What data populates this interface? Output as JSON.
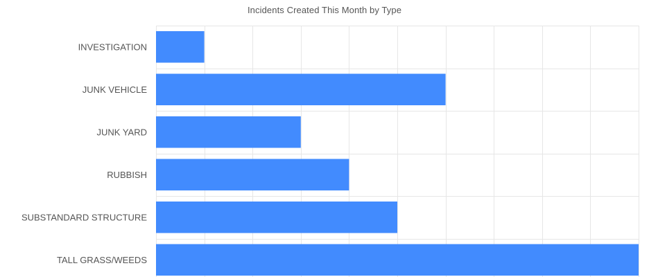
{
  "chart_data": {
    "type": "bar",
    "orientation": "horizontal",
    "title": "Incidents Created This Month by Type",
    "categories": [
      "INVESTIGATION",
      "JUNK VEHICLE",
      "JUNK YARD",
      "RUBBISH",
      "SUBSTANDARD STRUCTURE",
      "TALL GRASS/WEEDS"
    ],
    "values": [
      1,
      6,
      3,
      4,
      5,
      10
    ],
    "xlim": [
      0,
      10
    ],
    "grid": true,
    "colors": {
      "bar": "#428bfe"
    }
  }
}
